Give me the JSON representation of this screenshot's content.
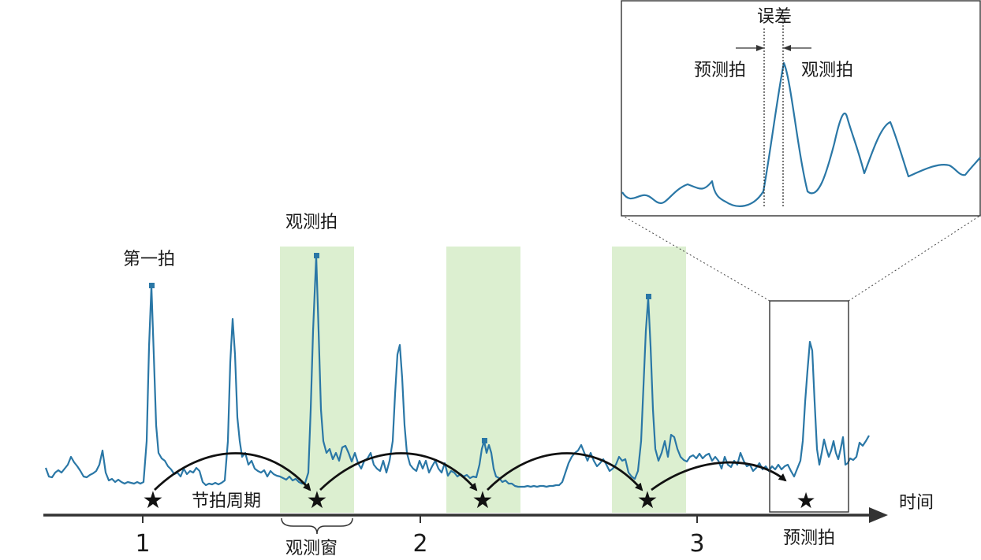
{
  "labels": {
    "first_beat": "第一拍",
    "observed_beat": "观测拍",
    "beat_period": "节拍周期",
    "observation_window": "观测窗",
    "predicted_beat": "预测拍",
    "time": "时间",
    "error": "误差",
    "inset_predicted": "预测拍",
    "inset_observed": "观测拍"
  },
  "axis_ticks": [
    "1",
    "2",
    "3"
  ],
  "colors": {
    "signal": "#2a77a6",
    "window_fill": "#d6ecc8",
    "axis": "#333333",
    "arrow": "#111111",
    "marker": "#2a77a6"
  }
}
